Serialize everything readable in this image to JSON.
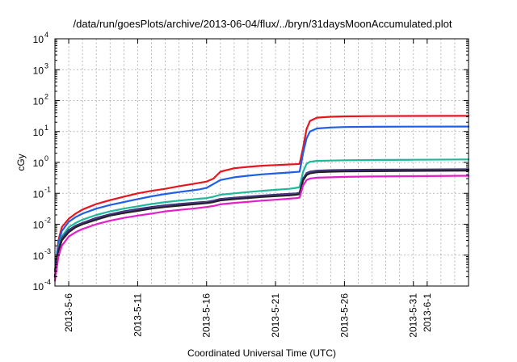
{
  "chart_data": {
    "type": "line",
    "title": "/data/run/goesPlots/archive/2013-06-04/flux/../bryn/31daysMoonAccumulated.plot",
    "xlabel": "Coordinated Universal Time (UTC)",
    "ylabel": "cGy",
    "y_scale": "log",
    "ylim": [
      0.0001,
      10000
    ],
    "y_ticks": [
      {
        "base": "10",
        "exp": "-4",
        "value": 0.0001
      },
      {
        "base": "10",
        "exp": "-3",
        "value": 0.001
      },
      {
        "base": "10",
        "exp": "-2",
        "value": 0.01
      },
      {
        "base": "10",
        "exp": "-1",
        "value": 0.1
      },
      {
        "base": "10",
        "exp": "0",
        "value": 1
      },
      {
        "base": "10",
        "exp": "1",
        "value": 10
      },
      {
        "base": "10",
        "exp": "2",
        "value": 100
      },
      {
        "base": "10",
        "exp": "3",
        "value": 1000
      },
      {
        "base": "10",
        "exp": "4",
        "value": 10000
      }
    ],
    "xlim": [
      "2013-05-05T00:00",
      "2013-06-04T00:00"
    ],
    "x_ticks": [
      {
        "label": "2013-5-6",
        "date": "2013-05-06"
      },
      {
        "label": "2013-5-11",
        "date": "2013-05-11"
      },
      {
        "label": "2013-5-16",
        "date": "2013-05-16"
      },
      {
        "label": "2013-5-21",
        "date": "2013-05-21"
      },
      {
        "label": "2013-5-26",
        "date": "2013-05-26"
      },
      {
        "label": "2013-5-31",
        "date": "2013-05-31"
      },
      {
        "label": "2013-6-1",
        "date": "2013-06-01"
      }
    ],
    "grid": true,
    "legend": "none",
    "x": [
      "2013-05-05T00:00",
      "2013-05-05T06:00",
      "2013-05-05T12:00",
      "2013-05-06T00:00",
      "2013-05-06T12:00",
      "2013-05-07T00:00",
      "2013-05-08T00:00",
      "2013-05-09T00:00",
      "2013-05-10T00:00",
      "2013-05-11T00:00",
      "2013-05-12T00:00",
      "2013-05-13T00:00",
      "2013-05-14T00:00",
      "2013-05-15T00:00",
      "2013-05-15T12:00",
      "2013-05-16T00:00",
      "2013-05-16T12:00",
      "2013-05-17T00:00",
      "2013-05-18T00:00",
      "2013-05-19T00:00",
      "2013-05-20T00:00",
      "2013-05-21T00:00",
      "2013-05-22T00:00",
      "2013-05-22T12:00",
      "2013-05-22T18:00",
      "2013-05-23T00:00",
      "2013-05-23T06:00",
      "2013-05-23T12:00",
      "2013-05-24T00:00",
      "2013-05-25T00:00",
      "2013-05-26T00:00",
      "2013-05-28T00:00",
      "2013-05-31T00:00",
      "2013-06-04T00:00"
    ],
    "series": [
      {
        "color": "#e8141e",
        "values": [
          0.0003,
          0.003,
          0.008,
          0.015,
          0.022,
          0.03,
          0.045,
          0.06,
          0.078,
          0.1,
          0.12,
          0.14,
          0.17,
          0.2,
          0.22,
          0.24,
          0.3,
          0.5,
          0.65,
          0.72,
          0.78,
          0.82,
          0.86,
          0.88,
          0.9,
          3.0,
          12.0,
          22.0,
          28.0,
          30.0,
          31.0,
          31.5,
          31.8,
          32.0
        ]
      },
      {
        "color": "#1e5fe6",
        "values": [
          0.0003,
          0.0025,
          0.006,
          0.012,
          0.017,
          0.022,
          0.032,
          0.042,
          0.052,
          0.065,
          0.08,
          0.095,
          0.11,
          0.125,
          0.135,
          0.15,
          0.2,
          0.27,
          0.33,
          0.37,
          0.41,
          0.44,
          0.47,
          0.49,
          0.5,
          2.0,
          6.0,
          10.0,
          12.5,
          13.5,
          14.0,
          14.2,
          14.4,
          14.5
        ]
      },
      {
        "color": "#1eb99b",
        "values": [
          0.0002,
          0.0018,
          0.004,
          0.008,
          0.011,
          0.014,
          0.02,
          0.026,
          0.032,
          0.038,
          0.045,
          0.052,
          0.058,
          0.064,
          0.067,
          0.07,
          0.078,
          0.09,
          0.1,
          0.11,
          0.12,
          0.13,
          0.14,
          0.15,
          0.16,
          0.5,
          0.9,
          1.05,
          1.12,
          1.15,
          1.18,
          1.2,
          1.22,
          1.25
        ]
      },
      {
        "color": "#2a2a6e",
        "values": [
          0.0002,
          0.0015,
          0.0035,
          0.0065,
          0.009,
          0.011,
          0.016,
          0.021,
          0.026,
          0.031,
          0.036,
          0.041,
          0.045,
          0.049,
          0.051,
          0.053,
          0.058,
          0.066,
          0.072,
          0.078,
          0.084,
          0.09,
          0.096,
          0.1,
          0.105,
          0.3,
          0.45,
          0.5,
          0.54,
          0.56,
          0.57,
          0.58,
          0.59,
          0.6
        ]
      },
      {
        "color": "#5a3c9a",
        "values": [
          0.0002,
          0.0014,
          0.0033,
          0.006,
          0.0085,
          0.0105,
          0.015,
          0.02,
          0.025,
          0.029,
          0.034,
          0.039,
          0.043,
          0.047,
          0.049,
          0.051,
          0.056,
          0.063,
          0.069,
          0.075,
          0.081,
          0.086,
          0.092,
          0.096,
          0.1,
          0.28,
          0.42,
          0.47,
          0.51,
          0.53,
          0.54,
          0.55,
          0.56,
          0.57
        ]
      },
      {
        "color": "#222222",
        "values": [
          0.0002,
          0.0013,
          0.003,
          0.0055,
          0.008,
          0.01,
          0.014,
          0.019,
          0.023,
          0.027,
          0.032,
          0.036,
          0.04,
          0.044,
          0.046,
          0.048,
          0.052,
          0.059,
          0.065,
          0.07,
          0.076,
          0.081,
          0.086,
          0.09,
          0.094,
          0.26,
          0.39,
          0.44,
          0.48,
          0.5,
          0.51,
          0.52,
          0.53,
          0.54
        ]
      },
      {
        "color": "#e61ec8",
        "values": [
          0.00015,
          0.0009,
          0.002,
          0.004,
          0.0055,
          0.007,
          0.01,
          0.013,
          0.016,
          0.019,
          0.022,
          0.026,
          0.029,
          0.032,
          0.034,
          0.036,
          0.039,
          0.044,
          0.049,
          0.053,
          0.058,
          0.062,
          0.067,
          0.07,
          0.073,
          0.18,
          0.27,
          0.3,
          0.32,
          0.33,
          0.34,
          0.35,
          0.36,
          0.37
        ]
      }
    ]
  }
}
